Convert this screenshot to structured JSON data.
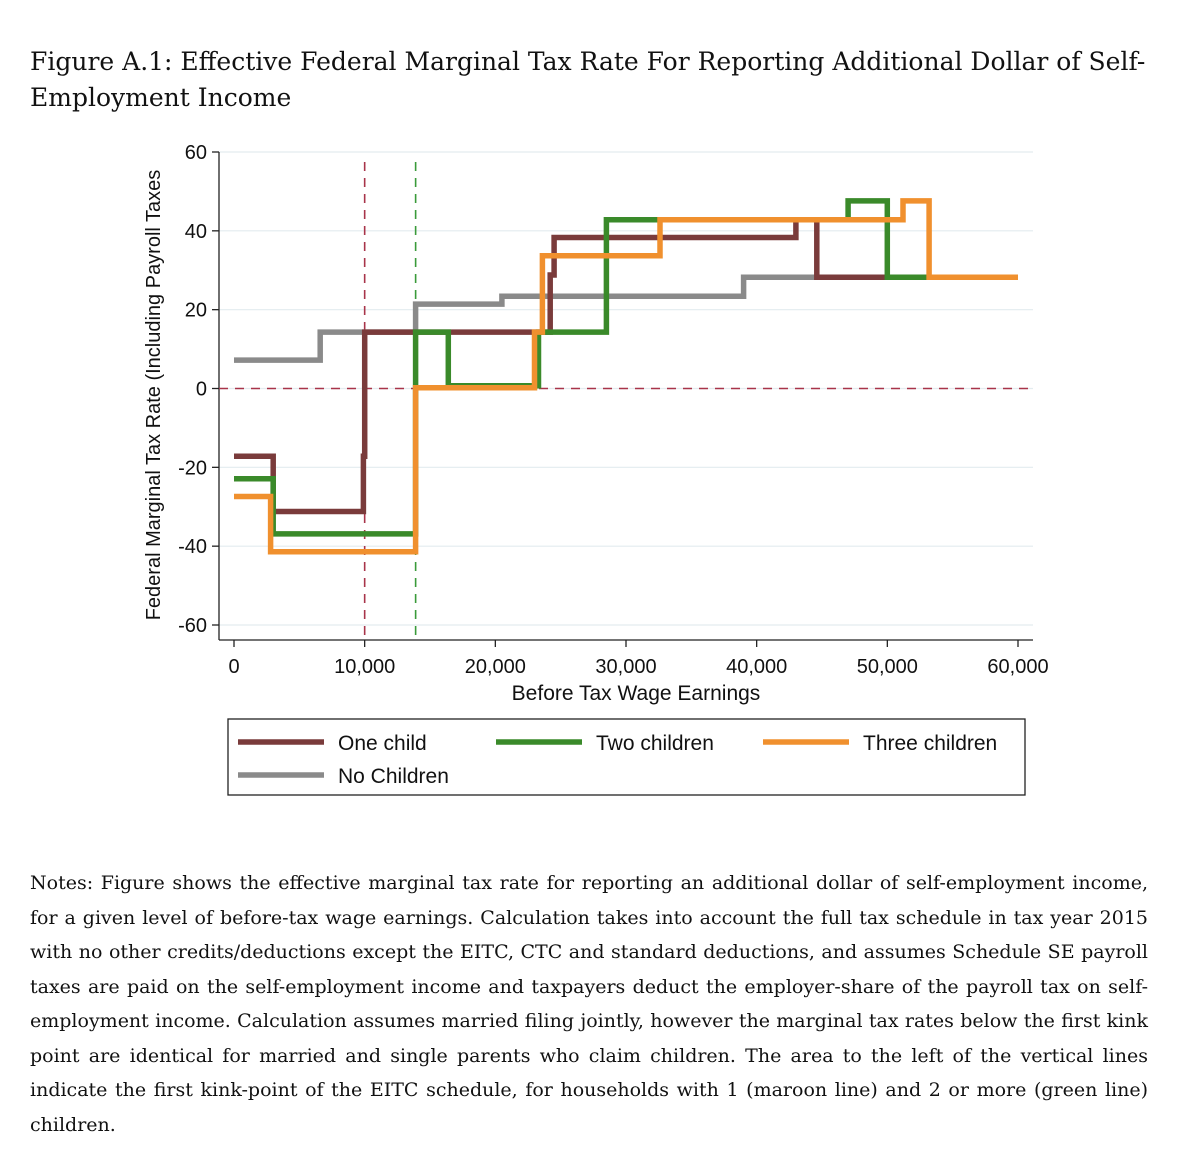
{
  "figure_title": "Figure A.1: Effective Federal Marginal Tax Rate For Reporting Additional Dollar of Self-Employment Income",
  "notes": "Notes: Figure shows the effective marginal tax rate for reporting an additional dollar of self-employment income, for a given level of before-tax wage earnings. Calculation takes into account the full tax schedule in tax year 2015 with no other credits/deductions except the EITC, CTC and standard deductions, and assumes Schedule SE payroll taxes are paid on the self-employment income and taxpayers deduct the employer-share of the payroll tax on self-employment income. Calculation assumes married filing jointly, however the marginal tax rates below the first kink point are identical for married and single parents who claim children. The area to the left of the vertical lines indicate the first kink-point of the EITC schedule, for households with 1 (maroon line) and 2 or more (green line) children.",
  "chart_data": {
    "type": "line",
    "xlabel": "Before Tax Wage Earnings",
    "ylabel": "Federal Marginal Tax Rate (Including Payroll Taxes",
    "xlim": [
      0,
      60000
    ],
    "ylim": [
      -60,
      60
    ],
    "xticks": [
      0,
      10000,
      20000,
      30000,
      40000,
      50000,
      60000
    ],
    "xtick_labels": [
      "0",
      "10,000",
      "20,000",
      "30,000",
      "40,000",
      "50,000",
      "60,000"
    ],
    "yticks": [
      60,
      40,
      20,
      0,
      -20,
      -40,
      -60
    ],
    "ytick_labels": [
      "60",
      "40",
      "20",
      "0",
      "-20",
      "-40",
      "-60"
    ],
    "grid": true,
    "legend_position": "bottom",
    "reference_lines": {
      "horizontal": [
        {
          "y": 0,
          "color": "#a8344a",
          "style": "dashed"
        }
      ],
      "vertical": [
        {
          "x": 10000,
          "color": "#a8344a",
          "style": "dashed"
        },
        {
          "x": 13900,
          "color": "#3a9a3a",
          "style": "dashed"
        }
      ]
    },
    "series": [
      {
        "name": "No Children",
        "color": "#8a8a8a",
        "x": [
          0,
          6600,
          6600,
          13900,
          13900,
          20500,
          20500,
          39000,
          39000,
          60000
        ],
        "y": [
          7.2,
          7.2,
          14.3,
          14.3,
          21.4,
          21.4,
          23.4,
          23.4,
          28.2,
          28.2
        ]
      },
      {
        "name": "One child",
        "color": "#7a3b3b",
        "x": [
          0,
          3000,
          3000,
          9900,
          9900,
          10000,
          10000,
          16200,
          16200,
          24200,
          24200,
          24500,
          24500,
          43000,
          43000,
          44600,
          44600,
          60000
        ],
        "y": [
          -17.2,
          -17.2,
          -31.2,
          -31.2,
          -17.2,
          -17.2,
          14.3,
          14.3,
          14.3,
          14.3,
          28.8,
          28.8,
          38.3,
          38.3,
          42.8,
          42.8,
          28.2,
          28.2
        ]
      },
      {
        "name": "Two children",
        "color": "#3a8a2a",
        "x": [
          0,
          3000,
          3000,
          13900,
          13900,
          16400,
          16400,
          23300,
          23300,
          28500,
          28500,
          32800,
          32800,
          47000,
          47000,
          50000,
          50000,
          60000
        ],
        "y": [
          -22.9,
          -22.9,
          -36.9,
          -36.9,
          14.3,
          14.3,
          0.7,
          0.7,
          14.3,
          14.3,
          42.8,
          42.8,
          42.8,
          42.8,
          47.6,
          47.6,
          28.2,
          28.2
        ]
      },
      {
        "name": "Three children",
        "color": "#f0902e",
        "x": [
          0,
          2800,
          2800,
          13900,
          13900,
          23000,
          23000,
          23600,
          23600,
          32600,
          32600,
          51200,
          51200,
          53200,
          53200,
          60000
        ],
        "y": [
          -27.4,
          -27.4,
          -41.4,
          -41.4,
          0.2,
          0.2,
          14.3,
          14.3,
          33.7,
          33.7,
          42.8,
          42.8,
          47.6,
          47.6,
          28.2,
          28.2
        ]
      }
    ],
    "legend_order": [
      "One child",
      "Two children",
      "Three children",
      "No Children"
    ]
  }
}
